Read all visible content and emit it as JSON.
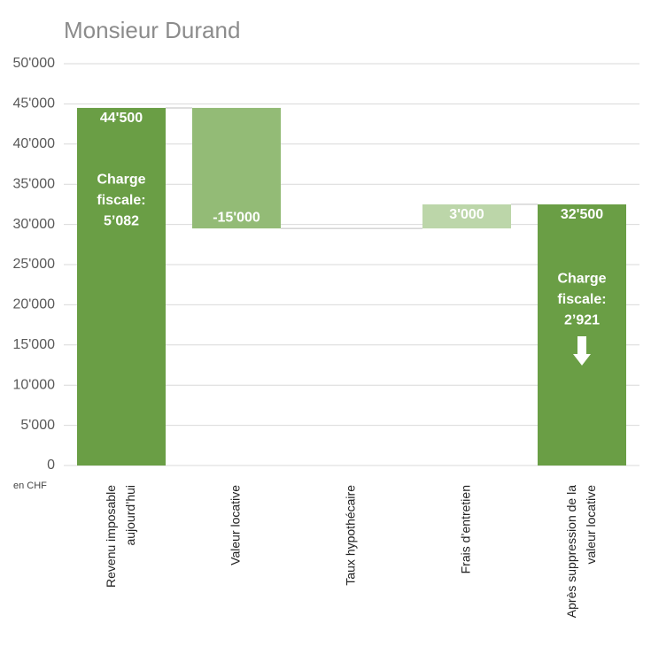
{
  "chart_data": {
    "type": "waterfall",
    "title": "Monsieur Durand",
    "y_unit_label": "en CHF",
    "categories": [
      "Revenu imposable\naujourd’hui",
      "Valeur locative",
      "Taux hypothécaire",
      "Frais d’entretien",
      "Après suppression de la\nvaleur locative"
    ],
    "measure": [
      "absolute",
      "relative",
      "relative",
      "relative",
      "total"
    ],
    "values": [
      44500,
      -15000,
      0,
      3000,
      32500
    ],
    "value_labels": [
      "44'500",
      "-15'000",
      null,
      "3'000",
      "32'500"
    ],
    "colors": {
      "total": "#6a9e45",
      "decrease": "#93bb76",
      "increase": "#bcd6a9"
    },
    "annotations": [
      "Charge\nfiscale:\n5’082",
      "Charge\nfiscale:\n2’921"
    ],
    "ylim": [
      0,
      50000
    ],
    "yticks": [
      0,
      {
        "value": 5000,
        "label": "5'000"
      },
      {
        "value": 10000,
        "label": "10'000"
      },
      {
        "value": 15000,
        "label": "15'000"
      },
      {
        "value": 20000,
        "label": "20'000"
      },
      {
        "value": 25000,
        "label": "25'000"
      },
      {
        "value": 30000,
        "label": "30'000"
      },
      {
        "value": 35000,
        "label": "35'000"
      },
      {
        "value": 40000,
        "label": "40'000"
      },
      {
        "value": 45000,
        "label": "45'000"
      },
      {
        "value": 50000,
        "label": "50'000"
      }
    ],
    "grid": true
  }
}
